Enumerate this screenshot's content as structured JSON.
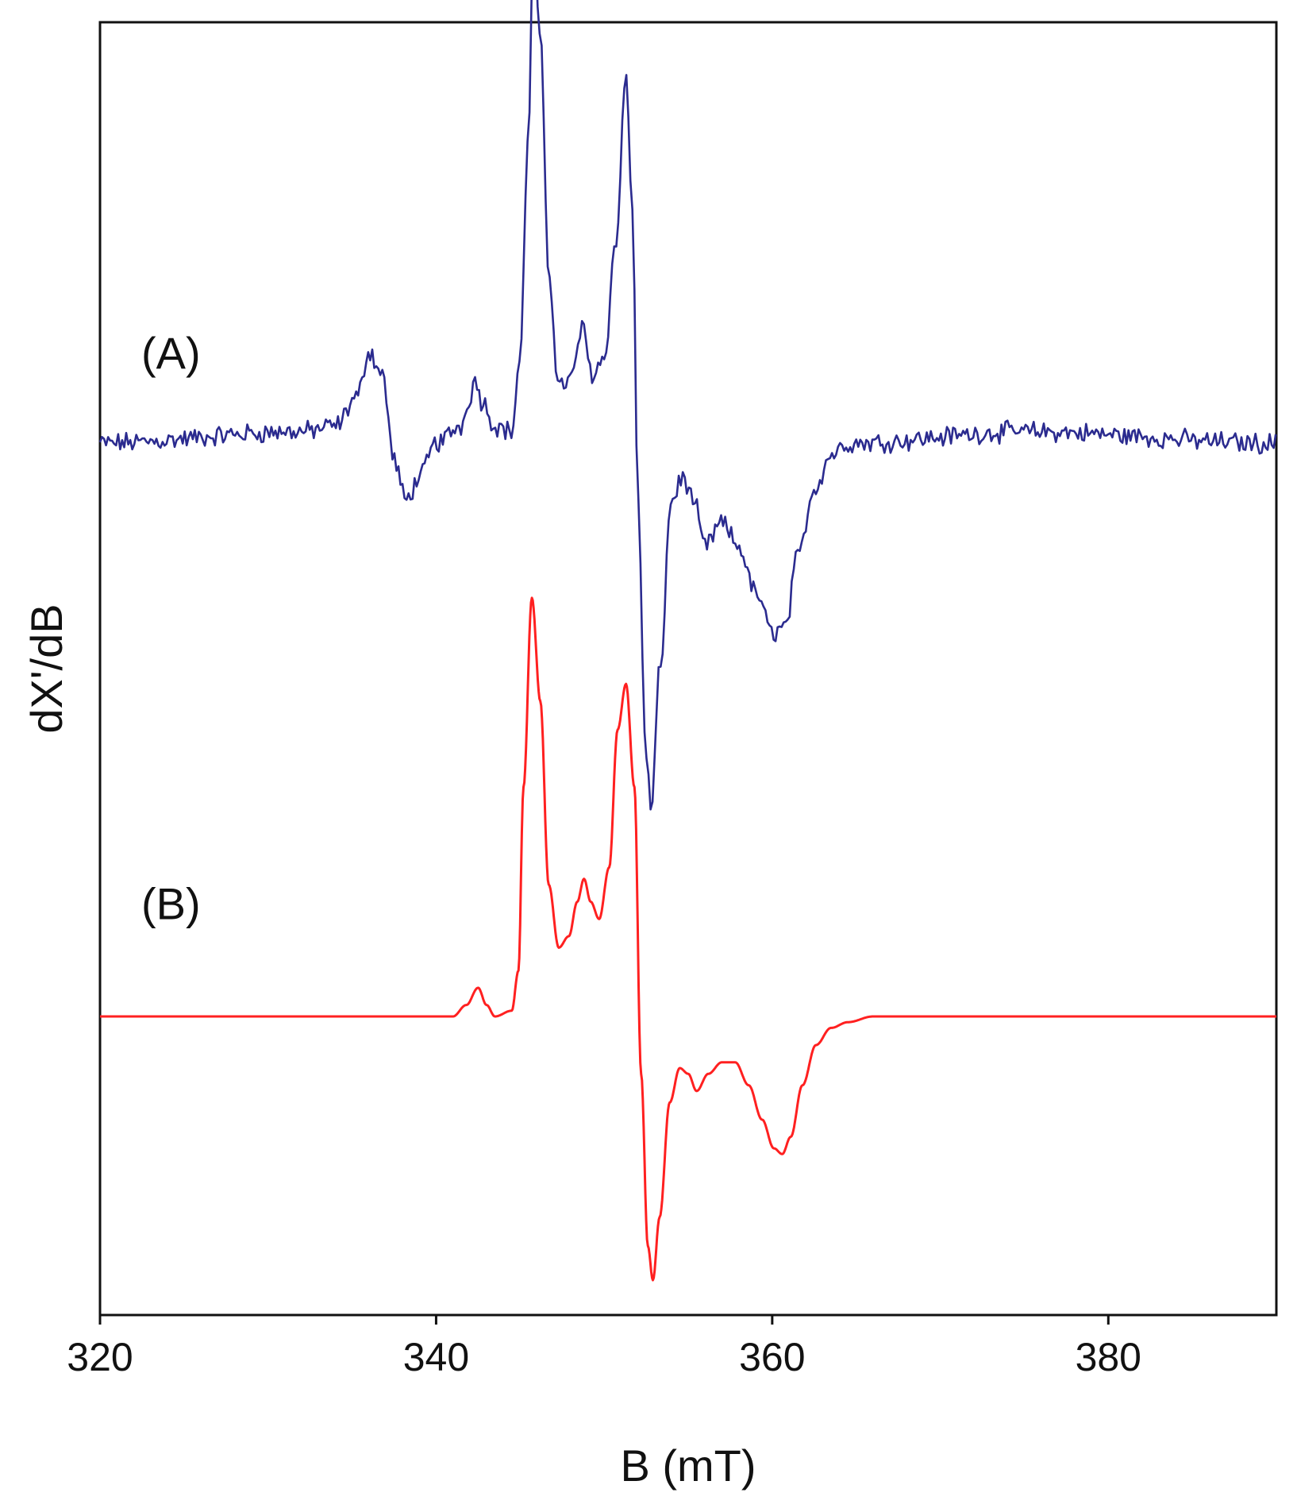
{
  "chart_data": {
    "type": "line",
    "title": "",
    "xlabel": "B (mT)",
    "ylabel": "dX'/dB",
    "xlim": [
      320,
      390
    ],
    "xticks": [
      320,
      340,
      360,
      380
    ],
    "xtick_labels": [
      "320",
      "340",
      "360",
      "380"
    ],
    "y_ticks_shown": false,
    "y_units": "arbitrary (relative amplitude, A baseline = 0, B baseline = -1.0)",
    "grid": false,
    "legend": "none",
    "series": [
      {
        "label": "(A)",
        "color": "#2b2b8f",
        "baseline": 0.0,
        "noise": true,
        "points": [
          [
            320.0,
            0.0
          ],
          [
            332.0,
            0.02
          ],
          [
            334.0,
            0.03
          ],
          [
            335.3,
            0.08
          ],
          [
            336.0,
            0.16
          ],
          [
            336.8,
            0.12
          ],
          [
            337.5,
            -0.03
          ],
          [
            338.2,
            -0.1
          ],
          [
            339.0,
            -0.06
          ],
          [
            340.0,
            0.0
          ],
          [
            341.5,
            0.03
          ],
          [
            342.0,
            0.08
          ],
          [
            342.3,
            0.11
          ],
          [
            342.8,
            0.07
          ],
          [
            343.5,
            0.03
          ],
          [
            344.5,
            0.02
          ],
          [
            345.0,
            0.15
          ],
          [
            345.5,
            0.55
          ],
          [
            345.8,
            0.89
          ],
          [
            346.2,
            0.7
          ],
          [
            346.7,
            0.3
          ],
          [
            347.3,
            0.1
          ],
          [
            348.0,
            0.11
          ],
          [
            348.7,
            0.2
          ],
          [
            349.3,
            0.12
          ],
          [
            350.0,
            0.15
          ],
          [
            350.7,
            0.35
          ],
          [
            351.3,
            0.64
          ],
          [
            351.7,
            0.4
          ],
          [
            352.0,
            -0.1
          ],
          [
            352.5,
            -0.55
          ],
          [
            352.8,
            -0.64
          ],
          [
            353.3,
            -0.4
          ],
          [
            354.0,
            -0.1
          ],
          [
            354.7,
            -0.06
          ],
          [
            355.3,
            -0.1
          ],
          [
            356.0,
            -0.18
          ],
          [
            357.0,
            -0.14
          ],
          [
            358.0,
            -0.18
          ],
          [
            359.0,
            -0.26
          ],
          [
            360.0,
            -0.33
          ],
          [
            360.8,
            -0.32
          ],
          [
            361.5,
            -0.2
          ],
          [
            362.5,
            -0.08
          ],
          [
            363.5,
            -0.02
          ],
          [
            364.5,
            0.0
          ],
          [
            375.0,
            0.02
          ],
          [
            390.0,
            0.0
          ]
        ]
      },
      {
        "label": "(B)",
        "color": "#ff2020",
        "baseline": -1.0,
        "noise": false,
        "points": [
          [
            320.0,
            -1.0
          ],
          [
            341.0,
            -1.0
          ],
          [
            341.8,
            -0.98
          ],
          [
            342.5,
            -0.95
          ],
          [
            343.0,
            -0.98
          ],
          [
            343.5,
            -1.0
          ],
          [
            344.5,
            -0.99
          ],
          [
            344.9,
            -0.92
          ],
          [
            345.2,
            -0.6
          ],
          [
            345.7,
            -0.27
          ],
          [
            346.2,
            -0.45
          ],
          [
            346.7,
            -0.77
          ],
          [
            347.3,
            -0.88
          ],
          [
            347.9,
            -0.86
          ],
          [
            348.4,
            -0.8
          ],
          [
            348.8,
            -0.76
          ],
          [
            349.2,
            -0.8
          ],
          [
            349.7,
            -0.83
          ],
          [
            350.3,
            -0.74
          ],
          [
            350.8,
            -0.5
          ],
          [
            351.3,
            -0.42
          ],
          [
            351.8,
            -0.6
          ],
          [
            352.2,
            -1.1
          ],
          [
            352.6,
            -1.4
          ],
          [
            352.9,
            -1.46
          ],
          [
            353.3,
            -1.35
          ],
          [
            353.9,
            -1.15
          ],
          [
            354.5,
            -1.09
          ],
          [
            355.0,
            -1.1
          ],
          [
            355.5,
            -1.13
          ],
          [
            356.2,
            -1.1
          ],
          [
            357.0,
            -1.08
          ],
          [
            357.8,
            -1.08
          ],
          [
            358.6,
            -1.12
          ],
          [
            359.4,
            -1.18
          ],
          [
            360.1,
            -1.23
          ],
          [
            360.6,
            -1.24
          ],
          [
            361.1,
            -1.21
          ],
          [
            361.8,
            -1.12
          ],
          [
            362.6,
            -1.05
          ],
          [
            363.5,
            -1.02
          ],
          [
            364.5,
            -1.01
          ],
          [
            366.0,
            -1.0
          ],
          [
            390.0,
            -1.0
          ]
        ]
      }
    ]
  },
  "colors": {
    "series_a": "#2b2b8f",
    "series_b": "#ff2020",
    "axis": "#111111",
    "background": "#ffffff"
  }
}
